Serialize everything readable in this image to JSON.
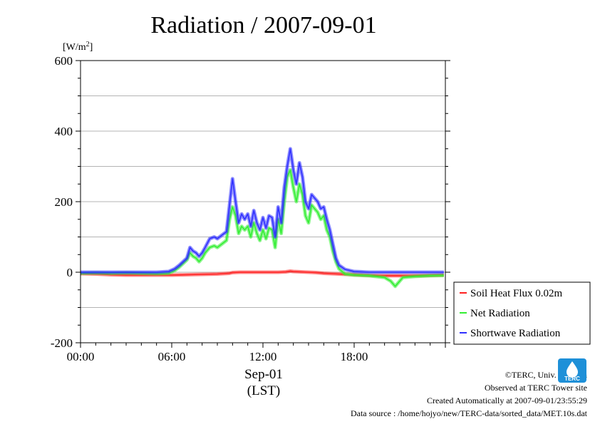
{
  "chart_data": {
    "type": "line",
    "title": "Radiation / 2007-09-01",
    "ylabel_unit": "[W/m",
    "ylabel_unit_sup": "2",
    "ylabel_unit_close": "]",
    "ylim": [
      -200,
      600
    ],
    "yticks": [
      -200,
      0,
      200,
      400,
      600
    ],
    "ytick_labels": [
      "-200",
      "0",
      "200",
      "400",
      "600"
    ],
    "xlim": [
      0,
      24
    ],
    "xticks": [
      0,
      6,
      12,
      18
    ],
    "xtick_labels": [
      "00:00",
      "06:00",
      "12:00",
      "18:00"
    ],
    "xlabel_date": "Sep-01",
    "xlabel": "(LST)",
    "grid": true,
    "legend_position": "right-lower",
    "series": [
      {
        "name": "Soil Heat Flux 0.02m",
        "color": "#ff2020",
        "points": [
          [
            0,
            -4
          ],
          [
            1,
            -5
          ],
          [
            2,
            -7
          ],
          [
            3,
            -8
          ],
          [
            4,
            -8
          ],
          [
            5,
            -8
          ],
          [
            6,
            -8
          ],
          [
            7,
            -7
          ],
          [
            8,
            -6
          ],
          [
            9,
            -5
          ],
          [
            9.8,
            -3
          ],
          [
            10,
            -1
          ],
          [
            10.5,
            0
          ],
          [
            11,
            0
          ],
          [
            11.5,
            0
          ],
          [
            12,
            0
          ],
          [
            12.5,
            0
          ],
          [
            13,
            0
          ],
          [
            13.5,
            1
          ],
          [
            13.8,
            3
          ],
          [
            14,
            2
          ],
          [
            14.5,
            1
          ],
          [
            15,
            0
          ],
          [
            15.5,
            -1
          ],
          [
            16,
            -3
          ],
          [
            17,
            -5
          ],
          [
            18,
            -7
          ],
          [
            19,
            -9
          ],
          [
            20,
            -10
          ],
          [
            21,
            -10
          ],
          [
            22,
            -10
          ],
          [
            23,
            -9
          ],
          [
            23.9,
            -8
          ]
        ]
      },
      {
        "name": "Net Radiation",
        "color": "#33ee33",
        "points": [
          [
            0,
            -3
          ],
          [
            1,
            -2
          ],
          [
            2,
            -3
          ],
          [
            3,
            -2
          ],
          [
            4,
            -3
          ],
          [
            5,
            -4
          ],
          [
            5.8,
            -3
          ],
          [
            6.2,
            5
          ],
          [
            6.5,
            15
          ],
          [
            7,
            35
          ],
          [
            7.2,
            55
          ],
          [
            7.4,
            45
          ],
          [
            7.6,
            40
          ],
          [
            7.8,
            30
          ],
          [
            8,
            40
          ],
          [
            8.2,
            55
          ],
          [
            8.5,
            70
          ],
          [
            8.8,
            75
          ],
          [
            9,
            70
          ],
          [
            9.3,
            80
          ],
          [
            9.6,
            90
          ],
          [
            9.8,
            150
          ],
          [
            10,
            185
          ],
          [
            10.2,
            160
          ],
          [
            10.4,
            110
          ],
          [
            10.6,
            130
          ],
          [
            10.8,
            120
          ],
          [
            11,
            130
          ],
          [
            11.2,
            100
          ],
          [
            11.4,
            140
          ],
          [
            11.6,
            110
          ],
          [
            11.8,
            90
          ],
          [
            12,
            120
          ],
          [
            12.2,
            95
          ],
          [
            12.4,
            125
          ],
          [
            12.6,
            120
          ],
          [
            12.8,
            70
          ],
          [
            13,
            150
          ],
          [
            13.2,
            110
          ],
          [
            13.4,
            200
          ],
          [
            13.6,
            270
          ],
          [
            13.8,
            290
          ],
          [
            14,
            240
          ],
          [
            14.2,
            200
          ],
          [
            14.4,
            250
          ],
          [
            14.6,
            220
          ],
          [
            14.8,
            160
          ],
          [
            15,
            140
          ],
          [
            15.2,
            190
          ],
          [
            15.4,
            180
          ],
          [
            15.6,
            170
          ],
          [
            15.8,
            150
          ],
          [
            16,
            160
          ],
          [
            16.2,
            120
          ],
          [
            16.4,
            100
          ],
          [
            16.6,
            60
          ],
          [
            16.8,
            30
          ],
          [
            17,
            10
          ],
          [
            17.4,
            -5
          ],
          [
            18,
            -8
          ],
          [
            19,
            -10
          ],
          [
            20,
            -15
          ],
          [
            20.4,
            -25
          ],
          [
            20.7,
            -40
          ],
          [
            20.9,
            -30
          ],
          [
            21.2,
            -15
          ],
          [
            22,
            -12
          ],
          [
            23,
            -10
          ],
          [
            23.9,
            -9
          ]
        ]
      },
      {
        "name": "Shortwave Radiation",
        "color": "#3030ff",
        "points": [
          [
            0,
            0
          ],
          [
            1,
            0
          ],
          [
            2,
            0
          ],
          [
            3,
            0
          ],
          [
            4,
            0
          ],
          [
            5,
            0
          ],
          [
            5.8,
            2
          ],
          [
            6.2,
            10
          ],
          [
            6.5,
            20
          ],
          [
            7,
            40
          ],
          [
            7.2,
            70
          ],
          [
            7.4,
            60
          ],
          [
            7.6,
            55
          ],
          [
            7.8,
            45
          ],
          [
            8,
            55
          ],
          [
            8.2,
            70
          ],
          [
            8.5,
            95
          ],
          [
            8.8,
            100
          ],
          [
            9,
            95
          ],
          [
            9.3,
            105
          ],
          [
            9.6,
            115
          ],
          [
            9.8,
            190
          ],
          [
            10,
            265
          ],
          [
            10.2,
            200
          ],
          [
            10.4,
            140
          ],
          [
            10.6,
            165
          ],
          [
            10.8,
            150
          ],
          [
            11,
            165
          ],
          [
            11.2,
            130
          ],
          [
            11.4,
            175
          ],
          [
            11.6,
            140
          ],
          [
            11.8,
            120
          ],
          [
            12,
            155
          ],
          [
            12.2,
            125
          ],
          [
            12.4,
            160
          ],
          [
            12.6,
            155
          ],
          [
            12.8,
            100
          ],
          [
            13,
            185
          ],
          [
            13.2,
            140
          ],
          [
            13.4,
            240
          ],
          [
            13.6,
            300
          ],
          [
            13.8,
            350
          ],
          [
            14,
            290
          ],
          [
            14.2,
            250
          ],
          [
            14.4,
            310
          ],
          [
            14.6,
            270
          ],
          [
            14.8,
            200
          ],
          [
            15,
            180
          ],
          [
            15.2,
            220
          ],
          [
            15.4,
            210
          ],
          [
            15.6,
            200
          ],
          [
            15.8,
            180
          ],
          [
            16,
            185
          ],
          [
            16.2,
            150
          ],
          [
            16.4,
            120
          ],
          [
            16.6,
            80
          ],
          [
            16.8,
            40
          ],
          [
            17,
            20
          ],
          [
            17.4,
            8
          ],
          [
            18,
            2
          ],
          [
            19,
            0
          ],
          [
            20,
            0
          ],
          [
            21,
            0
          ],
          [
            22,
            0
          ],
          [
            23,
            0
          ],
          [
            23.9,
            0
          ]
        ]
      }
    ]
  },
  "footer": {
    "copyright": "©TERC, Univ. Tsukuba",
    "observed": "Observed at TERC Tower site",
    "created": "Created Automatically at 2007-09-01/23:55:29",
    "source": "Data source : /home/hojyo/new/TERC-data/sorted_data/MET.10s.dat"
  },
  "logo_text": "TERC"
}
